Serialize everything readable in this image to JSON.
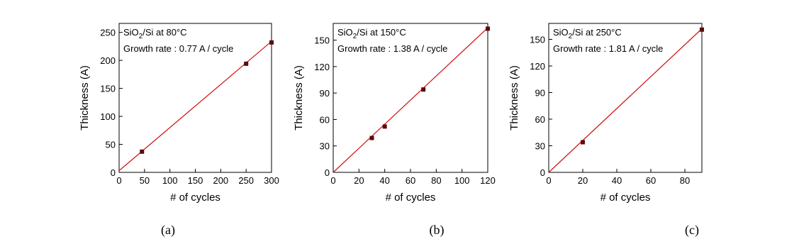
{
  "chart_data": [
    {
      "type": "scatter",
      "caption": "(a)",
      "xlabel": "# of cycles",
      "ylabel": "Thickness (A)",
      "annotation": {
        "main": "SiO",
        "sub": "2",
        "rest": "/Si at 80°C"
      },
      "growth_rate": "Growth rate : 0.77 A / cycle",
      "xlim": [
        0,
        300
      ],
      "xticks": [
        0,
        50,
        100,
        150,
        200,
        250,
        300
      ],
      "ylim": [
        0,
        266
      ],
      "yticks": [
        0,
        50,
        100,
        150,
        200,
        250
      ],
      "points": {
        "x": [
          45,
          250,
          300
        ],
        "values": [
          37,
          194,
          232
        ],
        "color": "#5a0a0a"
      },
      "fit": {
        "x": [
          0,
          300
        ],
        "values": [
          3,
          234
        ],
        "color": "#d01010"
      }
    },
    {
      "type": "scatter",
      "caption": "(b)",
      "xlabel": "# of cycles",
      "ylabel": "Thickness (A)",
      "annotation": {
        "main": "SiO",
        "sub": "2",
        "rest": "/Si at 150°C"
      },
      "growth_rate": "Growth rate : 1.38 A / cycle",
      "xlim": [
        0,
        120
      ],
      "xticks": [
        0,
        20,
        40,
        60,
        80,
        100,
        120
      ],
      "ylim": [
        0,
        169
      ],
      "yticks": [
        0,
        30,
        60,
        90,
        120,
        150
      ],
      "points": {
        "x": [
          30,
          40,
          70,
          120
        ],
        "values": [
          39,
          52,
          94,
          163
        ],
        "color": "#5a0a0a"
      },
      "fit": {
        "x": [
          0,
          120
        ],
        "values": [
          0,
          164
        ],
        "color": "#d01010"
      }
    },
    {
      "type": "scatter",
      "caption": "(c)",
      "xlabel": "# of cycles",
      "ylabel": "Thickness (A)",
      "annotation": {
        "main": "SiO",
        "sub": "2",
        "rest": "/Si at 250°C"
      },
      "growth_rate": "Growth rate : 1.81 A / cycle",
      "xlim": [
        0,
        90
      ],
      "xticks": [
        0,
        20,
        40,
        60,
        80
      ],
      "ylim": [
        0,
        168
      ],
      "yticks": [
        0,
        30,
        60,
        90,
        120,
        150
      ],
      "points": {
        "x": [
          20,
          90
        ],
        "values": [
          34,
          161
        ],
        "color": "#5a0a0a"
      },
      "fit": {
        "x": [
          0,
          90
        ],
        "values": [
          0,
          162
        ],
        "color": "#d01010"
      }
    }
  ]
}
